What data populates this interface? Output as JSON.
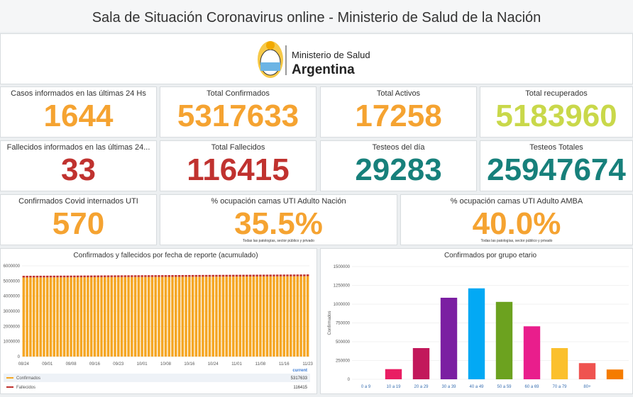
{
  "header": {
    "title": "Sala de Situación Coronavirus online - Ministerio de Salud de la Nación"
  },
  "logo": {
    "line1": "Ministerio de Salud",
    "line2": "Argentina"
  },
  "cards": [
    {
      "label": "Casos informados en las últimas 24 Hs",
      "value": "1644",
      "color": "#f5a331"
    },
    {
      "label": "Total Confirmados",
      "value": "5317633",
      "color": "#f5a331"
    },
    {
      "label": "Total Activos",
      "value": "17258",
      "color": "#f5a331"
    },
    {
      "label": "Total recuperados",
      "value": "5183960",
      "color": "#c9d84a"
    },
    {
      "label": "Fallecidos informados en las últimas 24...",
      "value": "33",
      "color": "#c0322f"
    },
    {
      "label": "Total Fallecidos",
      "value": "116415",
      "color": "#c0322f"
    },
    {
      "label": "Testeos del día",
      "value": "29283",
      "color": "#17807b"
    },
    {
      "label": "Testeos Totales",
      "value": "25947674",
      "color": "#17807b"
    },
    {
      "label": "Confirmados Covid internados UTI",
      "value": "570",
      "color": "#f5a331"
    },
    {
      "label": "% ocupación camas UTI Adulto Nación",
      "value": "35.5%",
      "color": "#f5a331",
      "note": "Todas las patologías, sector público y privado"
    },
    {
      "label": "% ocupación camas UTI Adulto AMBA",
      "value": "40.0%",
      "color": "#f5a331",
      "note": "Todas las patologías, sector público y privado"
    }
  ],
  "chart_data": [
    {
      "type": "bar",
      "stacked": true,
      "title": "Confirmados y fallecidos por fecha de reporte (acumulado)",
      "grid": true,
      "ylim": [
        0,
        6000000
      ],
      "yticks": [
        0,
        1000000,
        2000000,
        3000000,
        4000000,
        5000000,
        6000000
      ],
      "legend_header": "current",
      "categories": [
        "08/24",
        null,
        null,
        null,
        null,
        null,
        null,
        "09/01",
        null,
        null,
        null,
        null,
        null,
        null,
        "09/08",
        null,
        null,
        null,
        null,
        null,
        null,
        "09/16",
        null,
        null,
        null,
        null,
        null,
        null,
        "09/23",
        null,
        null,
        null,
        null,
        null,
        null,
        "10/01",
        null,
        null,
        null,
        null,
        null,
        null,
        "10/08",
        null,
        null,
        null,
        null,
        null,
        null,
        "10/16",
        null,
        null,
        null,
        null,
        null,
        null,
        "10/24",
        null,
        null,
        null,
        null,
        null,
        null,
        "11/01",
        null,
        null,
        null,
        null,
        null,
        null,
        "11/08",
        null,
        null,
        null,
        null,
        null,
        null,
        "11/16",
        null,
        null,
        null,
        null,
        null,
        null,
        "11/23"
      ],
      "series": [
        {
          "name": "Confirmados",
          "color": "#f5a623",
          "current": 5317633,
          "values": [
            5230000,
            5231000,
            5232000,
            5233000,
            5234000,
            5235000,
            5236000,
            5237000,
            5238000,
            5239000,
            5240000,
            5241000,
            5242000,
            5243000,
            5244000,
            5245000,
            5246000,
            5247000,
            5248000,
            5249000,
            5250000,
            5251000,
            5252000,
            5253000,
            5254000,
            5255000,
            5256000,
            5257000,
            5258000,
            5259000,
            5260000,
            5261000,
            5262000,
            5263000,
            5264000,
            5265000,
            5266000,
            5267000,
            5268000,
            5269000,
            5270000,
            5271000,
            5272000,
            5273000,
            5274000,
            5275000,
            5276000,
            5277000,
            5278000,
            5279000,
            5280000,
            5281000,
            5282000,
            5283000,
            5284000,
            5285000,
            5286000,
            5287000,
            5288000,
            5289000,
            5290000,
            5291000,
            5292000,
            5293000,
            5294000,
            5295000,
            5296000,
            5297000,
            5298000,
            5299000,
            5300000,
            5301000,
            5302000,
            5303000,
            5304000,
            5305000,
            5306000,
            5307000,
            5308000,
            5309000,
            5310000,
            5311000,
            5312000,
            5313000,
            5317633
          ]
        },
        {
          "name": "Fallecidos",
          "color": "#c0322f",
          "current": 116415,
          "values": [
            112000,
            112050,
            112100,
            112150,
            112200,
            112250,
            112300,
            112350,
            112400,
            112450,
            112500,
            112550,
            112600,
            112650,
            112700,
            112750,
            112800,
            112850,
            112900,
            112950,
            113000,
            113050,
            113100,
            113150,
            113200,
            113250,
            113300,
            113350,
            113400,
            113450,
            113500,
            113550,
            113600,
            113650,
            113700,
            113750,
            113800,
            113850,
            113900,
            113950,
            114000,
            114050,
            114100,
            114150,
            114200,
            114250,
            114300,
            114350,
            114400,
            114450,
            114500,
            114550,
            114600,
            114650,
            114700,
            114750,
            114800,
            114850,
            114900,
            114950,
            115000,
            115050,
            115100,
            115150,
            115200,
            115250,
            115300,
            115350,
            115400,
            115450,
            115500,
            115550,
            115600,
            115650,
            115700,
            115750,
            115800,
            115850,
            115900,
            115950,
            116000,
            116050,
            116100,
            116150,
            116415
          ]
        }
      ]
    },
    {
      "type": "bar",
      "title": "Confirmados por grupo etario",
      "y_label": "Confirmados",
      "grid": true,
      "ylim": [
        0,
        1500000
      ],
      "yticks": [
        0,
        250000,
        500000,
        750000,
        1000000,
        1250000,
        1500000
      ],
      "categories": [
        "0 a 9",
        "10 a 19",
        "20 a 29",
        "30 a 39",
        "40 a 49",
        "50 a 59",
        "60 a 69",
        "70 a 79",
        "80+",
        null
      ],
      "values": [
        0,
        135000,
        415000,
        1085000,
        1210000,
        1030000,
        705000,
        415000,
        215000,
        130000
      ],
      "colors": [
        "#f06292",
        "#e91e63",
        "#c2185b",
        "#7b1fa2",
        "#03a9f4",
        "#6ca21f",
        "#e91e8c",
        "#fbc02d",
        "#ef5350",
        "#f57c00"
      ]
    }
  ]
}
